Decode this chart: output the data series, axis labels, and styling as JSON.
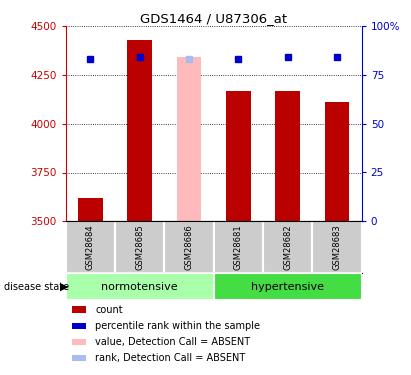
{
  "title": "GDS1464 / U87306_at",
  "samples": [
    "GSM28684",
    "GSM28685",
    "GSM28686",
    "GSM28681",
    "GSM28682",
    "GSM28683"
  ],
  "bar_values": [
    3620,
    4430,
    4340,
    4170,
    4170,
    4110
  ],
  "bar_colors": [
    "#bb0000",
    "#bb0000",
    "#ffbbbb",
    "#bb0000",
    "#bb0000",
    "#bb0000"
  ],
  "dot_values": [
    83,
    84,
    83,
    83,
    84,
    84
  ],
  "dot_colors": [
    "#0000cc",
    "#0000cc",
    "#aabbee",
    "#0000cc",
    "#0000cc",
    "#0000cc"
  ],
  "ylim_left": [
    3500,
    4500
  ],
  "ylim_right": [
    0,
    100
  ],
  "yticks_left": [
    3500,
    3750,
    4000,
    4250,
    4500
  ],
  "yticks_right": [
    0,
    25,
    50,
    75,
    100
  ],
  "ytick_labels_right": [
    "0",
    "25",
    "50",
    "75",
    "100%"
  ],
  "normotensive_color": "#aaffaa",
  "hypertensive_color": "#44dd44",
  "legend_items": [
    {
      "color": "#bb0000",
      "marker": "s",
      "label": "count"
    },
    {
      "color": "#0000cc",
      "marker": "s",
      "label": "percentile rank within the sample"
    },
    {
      "color": "#ffbbbb",
      "marker": "s",
      "label": "value, Detection Call = ABSENT"
    },
    {
      "color": "#aabbee",
      "marker": "s",
      "label": "rank, Detection Call = ABSENT"
    }
  ],
  "bar_width": 0.5,
  "axis_color_left": "#cc0000",
  "axis_color_right": "#0000cc",
  "sample_box_color": "#cccccc",
  "fig_width": 4.11,
  "fig_height": 3.75,
  "dpi": 100
}
